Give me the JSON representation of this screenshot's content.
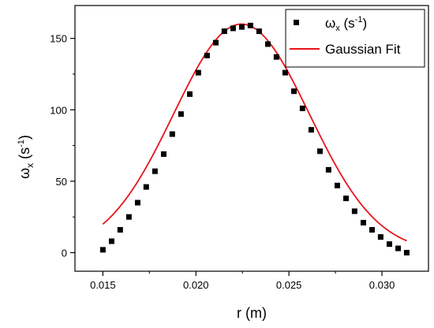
{
  "chart_data": {
    "type": "scatter",
    "xlabel": "r (m)",
    "ylabel": {
      "main": "ω",
      "sub": "x",
      "unit_open": " (s",
      "unit_sup": "-1",
      "unit_close": ")"
    },
    "xlim": [
      0.0135,
      0.0325
    ],
    "ylim": [
      -13,
      173
    ],
    "x_ticks": [
      0.015,
      0.02,
      0.025,
      0.03
    ],
    "x_tick_labels": [
      "0.015",
      "0.020",
      "0.025",
      "0.030"
    ],
    "y_ticks": [
      0,
      50,
      100,
      150
    ],
    "y_tick_labels": [
      "0",
      "50",
      "100",
      "150"
    ],
    "grid": false,
    "legend_position": "top-right",
    "series": [
      {
        "name": {
          "main": "ω",
          "sub": "x",
          "unit_open": " (s",
          "unit_sup": "-1",
          "unit_close": ")"
        },
        "type": "scatter",
        "marker": "square",
        "color": "#000000",
        "x": [
          0.015,
          0.01547,
          0.01593,
          0.0164,
          0.01687,
          0.01733,
          0.0178,
          0.01827,
          0.01873,
          0.0192,
          0.01967,
          0.02013,
          0.0206,
          0.02107,
          0.02153,
          0.022,
          0.02247,
          0.02293,
          0.0234,
          0.02387,
          0.02433,
          0.0248,
          0.02527,
          0.02573,
          0.0262,
          0.02667,
          0.02713,
          0.0276,
          0.02807,
          0.02853,
          0.029,
          0.02947,
          0.02993,
          0.0304,
          0.03087,
          0.03133
        ],
        "y": [
          2,
          8,
          16,
          25,
          35,
          46,
          57,
          69,
          83,
          97,
          111,
          126,
          138,
          147,
          155,
          157,
          158,
          159,
          155,
          146,
          137,
          126,
          113,
          101,
          86,
          71,
          58,
          47,
          38,
          29,
          21,
          16,
          11,
          6,
          3,
          0
        ]
      },
      {
        "name": "Gaussian Fit",
        "type": "line",
        "color": "#e8141b",
        "model": {
          "amplitude": 160,
          "center": 0.02245,
          "sigma": 0.00365
        },
        "x_range": [
          0.015,
          0.03133
        ]
      }
    ]
  }
}
